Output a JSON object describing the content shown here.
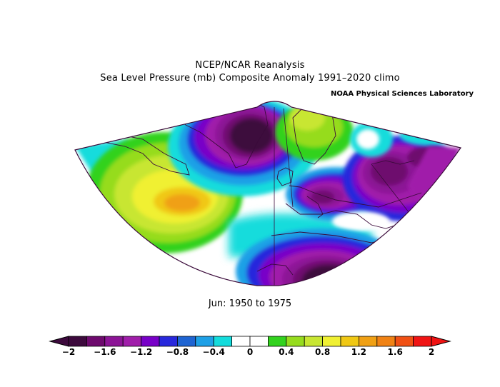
{
  "figure": {
    "title_line1": "NCEP/NCAR Reanalysis",
    "title_line2": "Sea Level Pressure (mb) Composite Anomaly 1991–2020 climo",
    "credit": "NOAA Physical Sciences Laboratory",
    "period": "Jun: 1950 to 1975"
  },
  "map": {
    "region": "North Atlantic / Europe",
    "projection": "conic sector",
    "variable": "Sea Level Pressure anomaly",
    "units": "mb",
    "features": [
      {
        "type": "high",
        "where": "western Atlantic / Newfoundland",
        "peak_value": 1.2
      },
      {
        "type": "low",
        "where": "Greenland",
        "peak_value": -2.0
      },
      {
        "type": "low",
        "where": "Mediterranean / Italy",
        "peak_value": -1.6
      },
      {
        "type": "low",
        "where": "Black Sea / western Russia",
        "peak_value": -1.6
      },
      {
        "type": "low",
        "where": "Sahara / North Africa",
        "peak_value": -2.0
      },
      {
        "type": "high",
        "where": "Scandinavia",
        "peak_value": 0.6
      }
    ]
  },
  "colorbar": {
    "min": -2,
    "max": 2,
    "step": 0.2,
    "tick_labels": [
      "−2",
      "−1.6",
      "−1.2",
      "−0.8",
      "−0.4",
      "0",
      "0.4",
      "0.8",
      "1.2",
      "1.6",
      "2"
    ],
    "colors": [
      "#3d0a3d",
      "#6e0a6e",
      "#8c1496",
      "#a01eaa",
      "#7800c8",
      "#2828dc",
      "#1e64d2",
      "#1ea0e6",
      "#14dcdc",
      "#ffffff",
      "#ffffff",
      "#32d21e",
      "#96dc1e",
      "#c8e632",
      "#f0f032",
      "#f0c814",
      "#f0a014",
      "#f08214",
      "#f05014",
      "#f01414"
    ]
  }
}
